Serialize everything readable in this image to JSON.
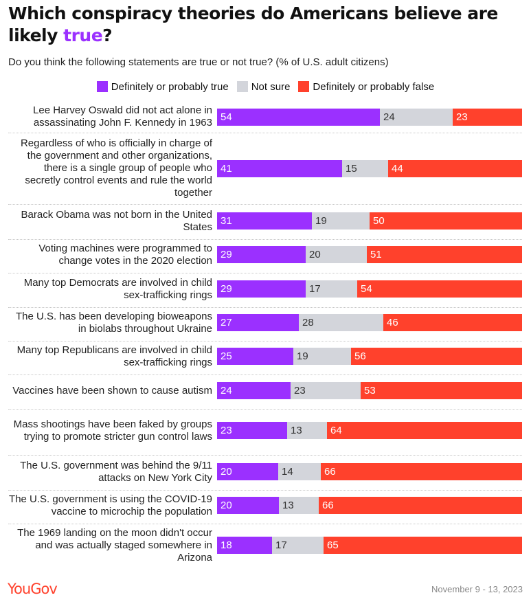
{
  "header": {
    "title_pre": "Which conspiracy theories do Americans believe are likely ",
    "title_highlight": "true",
    "title_post": "?",
    "subtitle": "Do you think the following statements are true or not true? (% of U.S. adult citizens)"
  },
  "colors": {
    "true": "#9b30ff",
    "unsure": "#d3d5db",
    "false": "#ff412c",
    "brand": "#ff412c"
  },
  "chart_data": {
    "type": "bar",
    "orientation": "horizontal",
    "stacked": true,
    "legend_position": "top",
    "series": [
      {
        "name": "Definitely or probably true",
        "values": [
          54,
          41,
          31,
          29,
          29,
          27,
          25,
          24,
          23,
          20,
          20,
          18
        ]
      },
      {
        "name": "Not sure",
        "values": [
          24,
          15,
          19,
          20,
          17,
          28,
          19,
          23,
          13,
          14,
          13,
          17
        ]
      },
      {
        "name": "Definitely or probably false",
        "values": [
          23,
          44,
          50,
          51,
          54,
          46,
          56,
          53,
          64,
          66,
          66,
          65
        ]
      }
    ],
    "categories": [
      "Lee Harvey Oswald did not act alone in assassinating John F. Kennedy in 1963",
      "Regardless of who is officially in charge of the government and other organizations, there is a single group of people who secretly control events and rule the world together",
      "Barack Obama was not born in the United States",
      "Voting machines were programmed to change votes in the 2020 election",
      "Many top Democrats are involved in child sex-trafficking rings",
      "The U.S. has been developing bioweapons in biolabs throughout Ukraine",
      "Many top Republicans are involved in child sex-trafficking rings",
      "Vaccines have been shown to cause autism",
      "Mass shootings have been faked by groups trying to promote stricter gun control laws",
      "The U.S. government was behind the 9/11 attacks on New York City",
      "The U.S. government is using the COVID-19 vaccine to microchip the population",
      "The 1969 landing on the moon didn't occur and was actually staged somewhere in Arizona"
    ]
  },
  "footer": {
    "logo": "YouGov",
    "date": "November 9 - 13, 2023"
  }
}
